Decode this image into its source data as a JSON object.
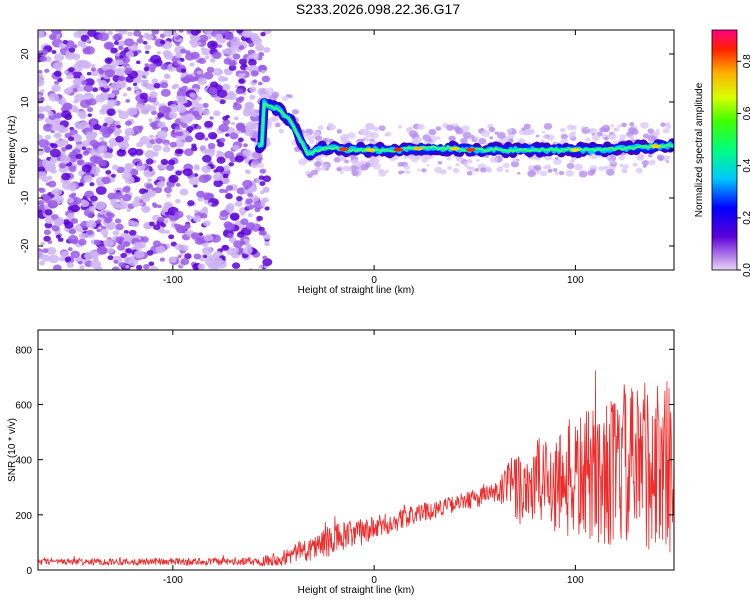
{
  "title": "S233.2026.098.22.36.G17",
  "colors": {
    "line": "#ee2b2b",
    "frame": "#000000",
    "scatter": "#6a1fe0"
  },
  "chart_data": [
    {
      "type": "heatmap",
      "xlabel": "Height of straight line (km)",
      "ylabel": "Frequency (Hz)",
      "xlim": [
        -167,
        149
      ],
      "ylim": [
        -25,
        25
      ],
      "xticks": [
        -100,
        0,
        100
      ],
      "yticks": [
        -20,
        -10,
        0,
        10,
        20
      ],
      "colorbar": {
        "label": "Normalized spectral amplitude",
        "range": [
          0.0,
          0.92
        ],
        "ticks": [
          "0.0",
          "0.2",
          "0.4",
          "0.6",
          "0.8"
        ],
        "colormap": "rainbow"
      },
      "ridge": [
        {
          "x": -55,
          "y": 10.0
        },
        {
          "x": -48,
          "y": 8.5
        },
        {
          "x": -42,
          "y": 6.5
        },
        {
          "x": -37,
          "y": 2.5
        },
        {
          "x": -33,
          "y": -1.0
        },
        {
          "x": -25,
          "y": 0.5
        },
        {
          "x": -10,
          "y": 0.0
        },
        {
          "x": 0,
          "y": 0.0
        },
        {
          "x": 10,
          "y": 0.0
        },
        {
          "x": 30,
          "y": 0.5
        },
        {
          "x": 50,
          "y": 0.0
        },
        {
          "x": 70,
          "y": 0.0
        },
        {
          "x": 90,
          "y": 0.0
        },
        {
          "x": 110,
          "y": 0.0
        },
        {
          "x": 130,
          "y": 0.5
        },
        {
          "x": 149,
          "y": 1.0
        }
      ],
      "noise_region": [
        -167,
        -57
      ]
    },
    {
      "type": "line",
      "xlabel": "Height of straight line (km)",
      "ylabel": "SNR (10 * v/v)",
      "xlim": [
        -167,
        149
      ],
      "ylim": [
        0,
        870
      ],
      "xticks": [
        -100,
        0,
        100
      ],
      "yticks": [
        0,
        200,
        400,
        600,
        800
      ],
      "series_envelope": [
        {
          "x": -167,
          "base": 30,
          "spread": 12
        },
        {
          "x": -60,
          "base": 30,
          "spread": 14
        },
        {
          "x": -45,
          "base": 45,
          "spread": 30
        },
        {
          "x": -20,
          "base": 110,
          "spread": 60
        },
        {
          "x": 0,
          "base": 150,
          "spread": 45
        },
        {
          "x": 20,
          "base": 200,
          "spread": 35
        },
        {
          "x": 40,
          "base": 240,
          "spread": 30
        },
        {
          "x": 60,
          "base": 280,
          "spread": 40
        },
        {
          "x": 70,
          "base": 300,
          "spread": 130
        },
        {
          "x": 100,
          "base": 330,
          "spread": 230
        },
        {
          "x": 130,
          "base": 370,
          "spread": 300
        },
        {
          "x": 149,
          "base": 380,
          "spread": 320
        }
      ]
    }
  ]
}
